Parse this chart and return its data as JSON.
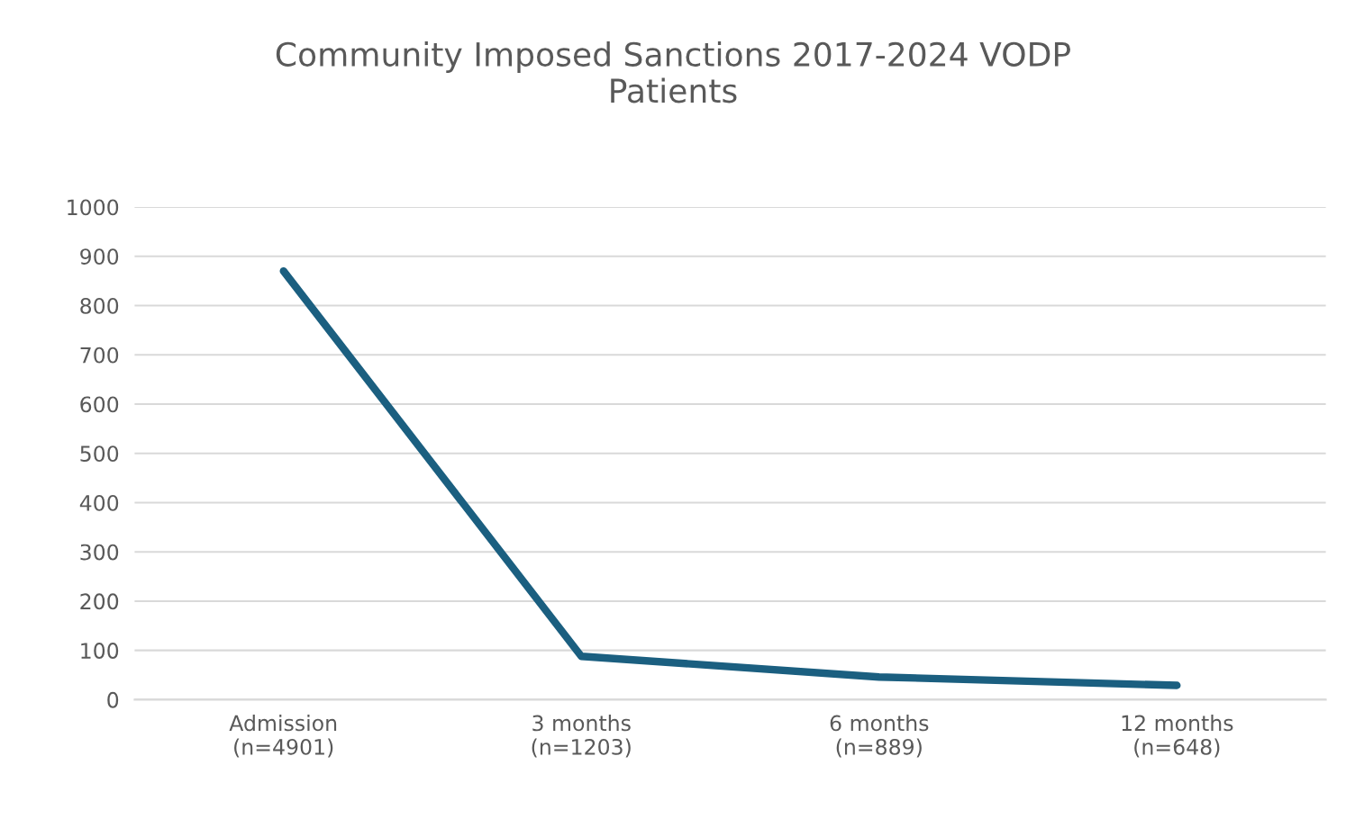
{
  "chart_data": {
    "type": "line",
    "title": "Community Imposed Sanctions 2017-2024 VODP\nPatients",
    "categories": [
      "Admission\n(n=4901)",
      "3 months\n(n=1203)",
      "6 months\n(n=889)",
      "12 months\n(n=648)"
    ],
    "series": [
      {
        "color": "#1b5f80",
        "values": [
          870,
          88,
          46,
          29
        ]
      }
    ],
    "ylim": [
      0,
      1000
    ],
    "yticks": [
      0,
      100,
      200,
      300,
      400,
      500,
      600,
      700,
      800,
      900,
      1000
    ],
    "grid": "y",
    "marker": "none",
    "line_style": "solid"
  }
}
